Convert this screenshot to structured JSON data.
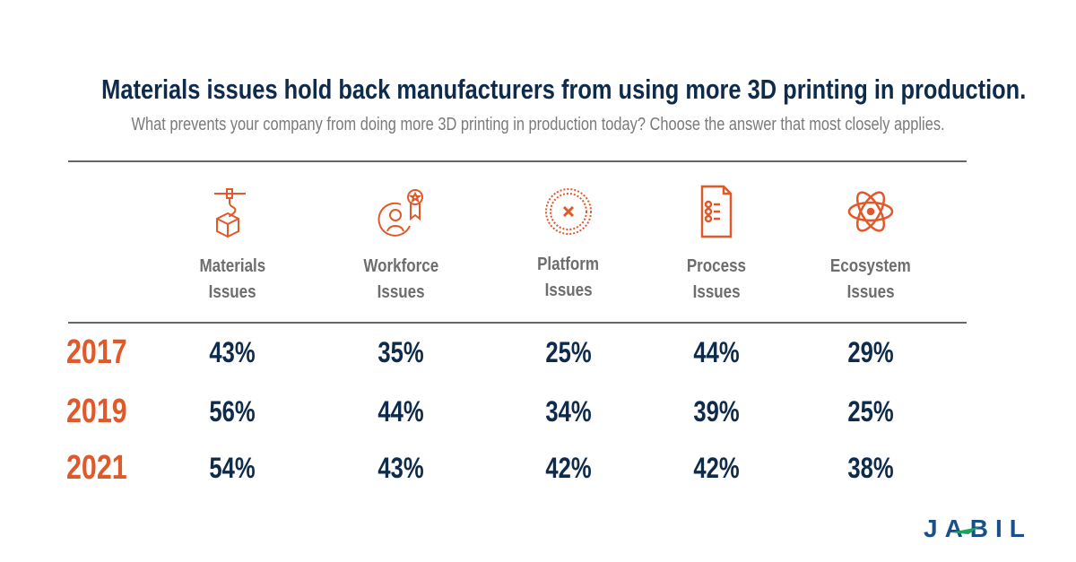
{
  "chart_data": {
    "type": "table",
    "title": "Materials issues hold back manufacturers from using more 3D printing in production.",
    "subtitle": "What prevents your company from doing more 3D printing in production today? Choose the answer that most closely applies.",
    "columns": [
      {
        "line1": "Materials",
        "line2": "Issues",
        "icon": "3d-printer-cube-icon"
      },
      {
        "line1": "Workforce",
        "line2": "Issues",
        "icon": "person-award-icon"
      },
      {
        "line1": "Platform",
        "line2": "Issues",
        "icon": "dotted-circle-x-icon"
      },
      {
        "line1": "Process",
        "line2": "Issues",
        "icon": "checklist-document-icon"
      },
      {
        "line1": "Ecosystem",
        "line2": "Issues",
        "icon": "atom-icon"
      }
    ],
    "rows": [
      {
        "year": "2017",
        "values": [
          "43%",
          "35%",
          "25%",
          "44%",
          "29%"
        ]
      },
      {
        "year": "2019",
        "values": [
          "56%",
          "44%",
          "34%",
          "39%",
          "25%"
        ]
      },
      {
        "year": "2021",
        "values": [
          "54%",
          "43%",
          "42%",
          "42%",
          "38%"
        ]
      }
    ],
    "colors": {
      "accent": "#e0592a",
      "text": "#0e2b4c",
      "muted": "#7a7a7a"
    }
  },
  "logo": {
    "text": "JABIL",
    "color": "#1a4f8a",
    "accent": "#1aa35a"
  }
}
